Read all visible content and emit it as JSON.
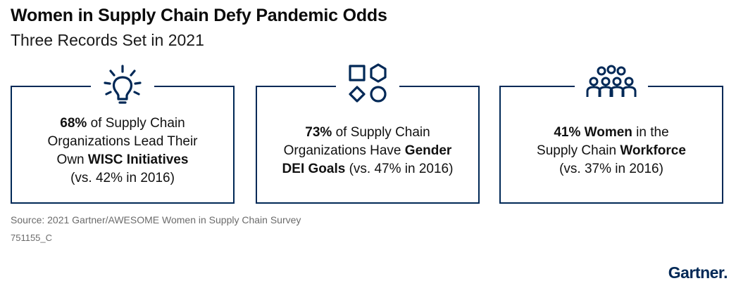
{
  "header": {
    "title": "Women in Supply Chain Defy Pandemic Odds",
    "subtitle": "Three Records Set in 2021"
  },
  "cards": [
    {
      "icon": "lightbulb-icon",
      "line1_bold": "68%",
      "line1_rest": " of Supply Chain",
      "line2": "Organizations Lead Their",
      "line3_pre": "Own ",
      "line3_bold": "WISC Initiatives",
      "line4": "(vs. 42% in 2016)"
    },
    {
      "icon": "shapes-icon",
      "line1_bold": "73%",
      "line1_rest": " of Supply Chain",
      "line2_pre": "Organizations Have ",
      "line2_bold": "Gender",
      "line3_bold": "DEI Goals",
      "line3_rest": " (vs. 47% in 2016)"
    },
    {
      "icon": "people-group-icon",
      "line1_bold": "41% Women",
      "line1_rest": " in the",
      "line2_pre": "Supply Chain ",
      "line2_bold": "Workforce",
      "line3": "(vs. 37% in 2016)"
    }
  ],
  "footer": {
    "source": "Source: 2021 Gartner/AWESOME Women in Supply Chain Survey",
    "code": "751155_C",
    "logo": "Gartner."
  },
  "colors": {
    "navy": "#002856",
    "text": "#111111",
    "muted": "#6b6b6b"
  }
}
